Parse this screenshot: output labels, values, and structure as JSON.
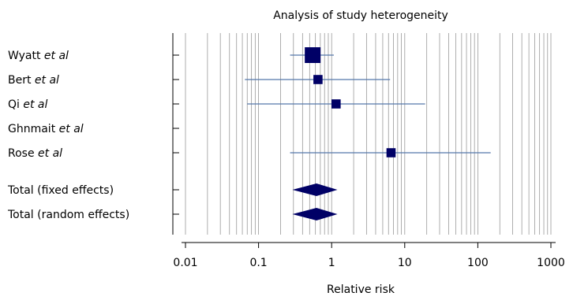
{
  "chart_data": {
    "type": "forest",
    "title": "Analysis of study heterogeneity",
    "xlabel": "Relative risk",
    "xscale": "log",
    "xlim": [
      0.01,
      1000
    ],
    "grid": true,
    "tick_labels": [
      "0.01",
      "0.1",
      "1",
      "10",
      "100",
      "1000"
    ],
    "tick_values": [
      0.01,
      0.1,
      1,
      10,
      100,
      1000
    ],
    "rows": [
      {
        "name": "Wyatt",
        "suffix": "et al",
        "kind": "study",
        "estimate": 0.55,
        "ci": [
          0.27,
          1.07
        ],
        "weight": 1.0
      },
      {
        "name": "Bert",
        "suffix": "et al",
        "kind": "study",
        "estimate": 0.65,
        "ci": [
          0.065,
          6.3
        ],
        "weight": 0.3
      },
      {
        "name": "Qi",
        "suffix": "et al",
        "kind": "study",
        "estimate": 1.15,
        "ci": [
          0.07,
          19
        ],
        "weight": 0.3
      },
      {
        "name": "Ghnmait",
        "suffix": "et al",
        "kind": "study",
        "estimate": null,
        "ci": null,
        "weight": 0
      },
      {
        "name": "Rose",
        "suffix": "et al",
        "kind": "study",
        "estimate": 6.5,
        "ci": [
          0.27,
          150
        ],
        "weight": 0.3
      },
      {
        "name": "Total (fixed effects)",
        "suffix": "",
        "kind": "pooled",
        "estimate": 0.62,
        "ci": [
          0.29,
          1.2
        ]
      },
      {
        "name": "Total (random effects)",
        "suffix": "",
        "kind": "pooled",
        "estimate": 0.62,
        "ci": [
          0.29,
          1.2
        ]
      }
    ]
  },
  "colors": {
    "marker": "#000066",
    "ci_line": "#5577aa",
    "grid": "#9a9a9a",
    "axis": "#000000"
  }
}
